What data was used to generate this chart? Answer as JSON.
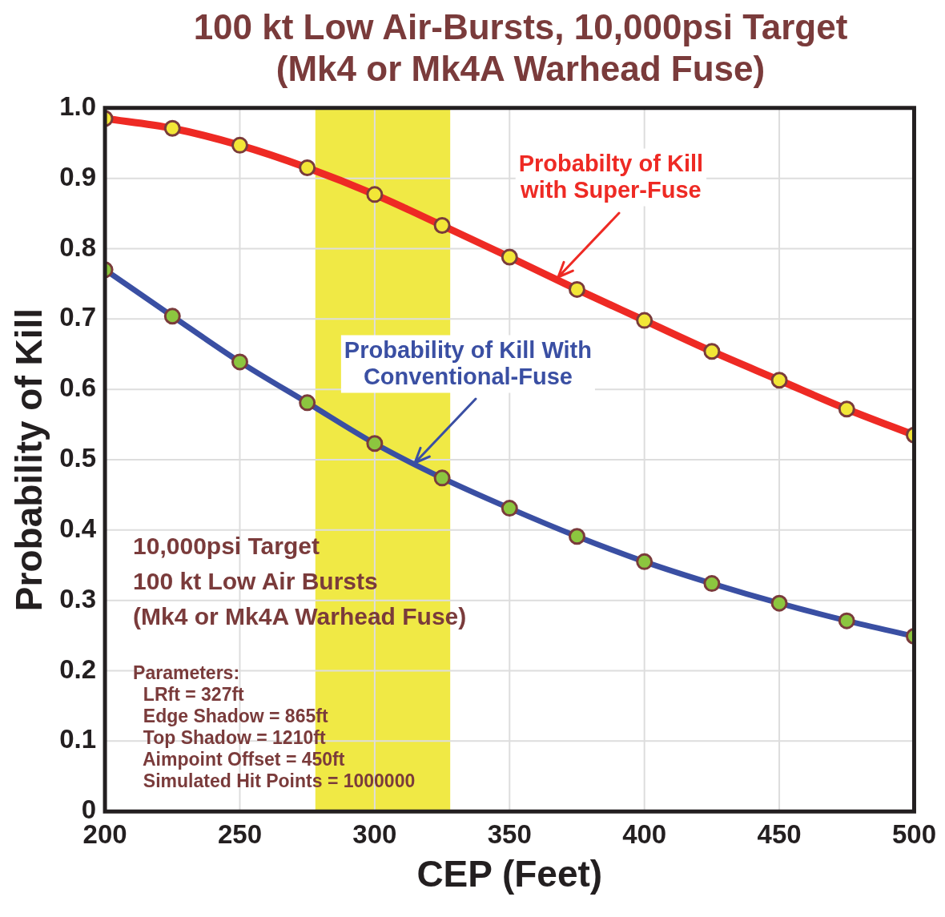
{
  "chart_data": {
    "type": "line",
    "title": "100 kt Low Air-Bursts,  10,000psi Target",
    "subtitle": "(Mk4 or Mk4A Warhead Fuse)",
    "xlabel": "CEP (Feet)",
    "ylabel": "Probability of Kill",
    "x": [
      200,
      225,
      250,
      275,
      300,
      325,
      350,
      375,
      400,
      425,
      450,
      475,
      500
    ],
    "series": [
      {
        "color": "#ee2a24",
        "values": [
          0.985,
          0.971,
          0.947,
          0.915,
          0.877,
          0.833,
          0.788,
          0.742,
          0.698,
          0.654,
          0.613,
          0.572,
          0.535
        ]
      },
      {
        "color": "#3a4fa3",
        "values": [
          0.77,
          0.704,
          0.639,
          0.581,
          0.523,
          0.474,
          0.431,
          0.391,
          0.355,
          0.324,
          0.296,
          0.271,
          0.249
        ]
      }
    ],
    "xlim": [
      200,
      500
    ],
    "xticks": [
      200,
      250,
      300,
      350,
      400,
      450,
      500
    ],
    "ylim": [
      0,
      1
    ],
    "yticks": [
      0,
      0.1,
      0.2,
      0.3,
      0.4,
      0.5,
      0.6,
      0.7,
      0.8,
      0.9,
      {
        "value": 1,
        "label": "1.0"
      }
    ],
    "bands": [
      {
        "axis": "x",
        "from": 278,
        "to": 328,
        "color": "#f0e945"
      }
    ],
    "grid": true,
    "legend": false,
    "marker": "circle",
    "line_style": "solid",
    "annotations": [
      {
        "text": "Probabilty of Kill\nwith Super-Fuse",
        "x": 368,
        "y": 0.76
      },
      {
        "text": "Probability of Kill With\nConventional-Fuse",
        "x": 315,
        "y": 0.495
      },
      "10,000psi Target\n100 kt Low Air Bursts\n(Mk4 or Mk4A Warhead Fuse)",
      "Parameters:\n  LRft = 327ft\n  Edge Shadow = 865ft\n  Top Shadow = 1210ft\n  Aimpoint Offset = 450ft\n  Simulated Hit Points = 1000000"
    ]
  }
}
